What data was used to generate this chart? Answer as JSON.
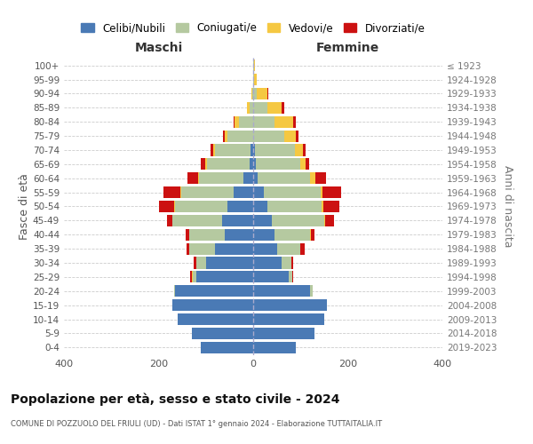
{
  "age_groups": [
    "0-4",
    "5-9",
    "10-14",
    "15-19",
    "20-24",
    "25-29",
    "30-34",
    "35-39",
    "40-44",
    "45-49",
    "50-54",
    "55-59",
    "60-64",
    "65-69",
    "70-74",
    "75-79",
    "80-84",
    "85-89",
    "90-94",
    "95-99",
    "100+"
  ],
  "birth_years": [
    "2019-2023",
    "2014-2018",
    "2009-2013",
    "2004-2008",
    "1999-2003",
    "1994-1998",
    "1989-1993",
    "1984-1988",
    "1979-1983",
    "1974-1978",
    "1969-1973",
    "1964-1968",
    "1959-1963",
    "1954-1958",
    "1949-1953",
    "1944-1948",
    "1939-1943",
    "1934-1938",
    "1929-1933",
    "1924-1928",
    "≤ 1923"
  ],
  "males": {
    "celibe": [
      110,
      130,
      160,
      170,
      165,
      120,
      100,
      80,
      60,
      65,
      55,
      42,
      20,
      8,
      5,
      0,
      0,
      0,
      0,
      0,
      0
    ],
    "coniugato": [
      0,
      0,
      0,
      0,
      3,
      8,
      20,
      55,
      75,
      105,
      110,
      110,
      95,
      90,
      75,
      55,
      30,
      8,
      2,
      0,
      0
    ],
    "vedovo": [
      0,
      0,
      0,
      0,
      0,
      2,
      0,
      0,
      0,
      0,
      2,
      2,
      2,
      3,
      5,
      5,
      10,
      5,
      2,
      0,
      0
    ],
    "divorziato": [
      0,
      0,
      0,
      0,
      0,
      3,
      5,
      5,
      8,
      12,
      32,
      35,
      22,
      10,
      5,
      3,
      2,
      0,
      0,
      0,
      0
    ]
  },
  "females": {
    "nubile": [
      90,
      130,
      150,
      155,
      120,
      75,
      60,
      50,
      45,
      40,
      30,
      22,
      10,
      5,
      3,
      0,
      0,
      0,
      0,
      0,
      0
    ],
    "coniugata": [
      0,
      0,
      0,
      0,
      5,
      8,
      20,
      50,
      75,
      110,
      115,
      120,
      110,
      95,
      85,
      65,
      45,
      30,
      8,
      2,
      1
    ],
    "vedova": [
      0,
      0,
      0,
      0,
      0,
      0,
      0,
      0,
      2,
      2,
      3,
      5,
      12,
      10,
      18,
      25,
      40,
      30,
      22,
      5,
      2
    ],
    "divorziata": [
      0,
      0,
      0,
      0,
      0,
      2,
      5,
      8,
      8,
      18,
      35,
      38,
      22,
      8,
      5,
      5,
      5,
      5,
      2,
      0,
      0
    ]
  },
  "colors": {
    "celibe": "#4a7ab5",
    "coniugato": "#b5c9a0",
    "vedovo": "#f5c842",
    "divorziato": "#cc1111"
  },
  "title": "Popolazione per età, sesso e stato civile - 2024",
  "subtitle": "COMUNE DI POZZUOLO DEL FRIULI (UD) - Dati ISTAT 1° gennaio 2024 - Elaborazione TUTTAITALIA.IT",
  "xlabel_left": "Maschi",
  "xlabel_right": "Femmine",
  "ylabel_left": "Fasce di età",
  "ylabel_right": "Anni di nascita",
  "legend_labels": [
    "Celibi/Nubili",
    "Coniugati/e",
    "Vedovi/e",
    "Divorziati/e"
  ],
  "xlim": 400,
  "background_color": "#ffffff",
  "grid_color": "#cccccc"
}
